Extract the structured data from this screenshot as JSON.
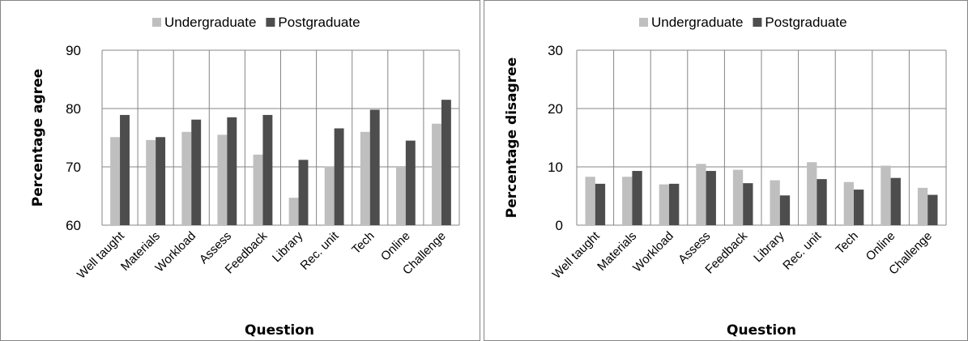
{
  "colors": {
    "undergraduate": "#bfbfbf",
    "postgraduate": "#4d4d4d",
    "grid": "#868686",
    "frame": "#868686"
  },
  "chart_data": [
    {
      "type": "bar",
      "legend_position": "top",
      "grid": true,
      "xlabel": "Question",
      "ylabel": "Percentage agree",
      "ylim": [
        60,
        90
      ],
      "yticks": [
        "60",
        "70",
        "80",
        "90"
      ],
      "categories": [
        "Well taught",
        "Materials",
        "Workload",
        "Assess",
        "Feedback",
        "Library",
        "Rec. unit",
        "Tech",
        "Online",
        "Challenge"
      ],
      "series": [
        {
          "name": "Undergraduate",
          "values": [
            75.1,
            74.6,
            76.0,
            75.5,
            72.1,
            64.7,
            70.1,
            76.0,
            70.0,
            77.4
          ]
        },
        {
          "name": "Postgraduate",
          "values": [
            78.9,
            75.1,
            78.1,
            78.5,
            78.9,
            71.2,
            76.6,
            79.8,
            74.5,
            81.5
          ]
        }
      ]
    },
    {
      "type": "bar",
      "legend_position": "top",
      "grid": true,
      "xlabel": "Question",
      "ylabel": "Percentage disagree",
      "ylim": [
        0,
        30
      ],
      "yticks": [
        "0",
        "10",
        "20",
        "30"
      ],
      "categories": [
        "Well taught",
        "Materials",
        "Workload",
        "Assess",
        "Feedback",
        "Library",
        "Rec. unit",
        "Tech",
        "Online",
        "Challenge"
      ],
      "series": [
        {
          "name": "Undergraduate",
          "values": [
            8.3,
            8.3,
            7.0,
            10.5,
            9.5,
            7.7,
            10.8,
            7.4,
            10.2,
            6.4
          ]
        },
        {
          "name": "Postgraduate",
          "values": [
            7.1,
            9.3,
            7.1,
            9.3,
            7.2,
            5.1,
            7.9,
            6.1,
            8.1,
            5.2
          ]
        }
      ]
    }
  ]
}
